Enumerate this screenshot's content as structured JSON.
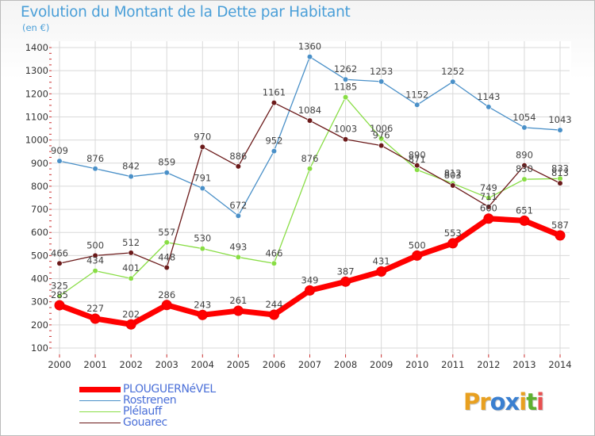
{
  "title": "Evolution du Montant de la Dette par Habitant",
  "unit": "(en €)",
  "logo": "Proxiti",
  "chart_data": {
    "type": "line",
    "title": "Evolution du Montant de la Dette par Habitant",
    "ylabel": "(en €)",
    "xlabel": "",
    "ylim": [
      100,
      1400
    ],
    "yticks": [
      "1400",
      "1300",
      "1200",
      "1100",
      "1000",
      "900",
      "800",
      "700",
      "600",
      "500",
      "400",
      "300",
      "200",
      "100"
    ],
    "x": [
      "2000",
      "2001",
      "2002",
      "2003",
      "2004",
      "2005",
      "2006",
      "2007",
      "2008",
      "2009",
      "2010",
      "2011",
      "2012",
      "2013",
      "2014"
    ],
    "grid": true,
    "legend": "bottom-left",
    "series": [
      {
        "name": "PLOUGUERNéVEL",
        "color": "#ff0000",
        "values": [
          285,
          227,
          202,
          286,
          243,
          261,
          244,
          349,
          387,
          431,
          500,
          553,
          660,
          651,
          587
        ]
      },
      {
        "name": "Rostrenen",
        "color": "#4a90c8",
        "values": [
          909,
          876,
          842,
          859,
          791,
          672,
          952,
          1360,
          1262,
          1253,
          1152,
          1252,
          1143,
          1054,
          1043
        ]
      },
      {
        "name": "Plélauff",
        "color": "#88dd44",
        "values": [
          325,
          434,
          401,
          557,
          530,
          493,
          466,
          876,
          1185,
          1006,
          871,
          812,
          749,
          830,
          833
        ]
      },
      {
        "name": "Gouarec",
        "color": "#6b1a1a",
        "values": [
          466,
          500,
          512,
          448,
          970,
          886,
          1161,
          1084,
          1003,
          976,
          890,
          803,
          711,
          890,
          813
        ]
      }
    ]
  }
}
